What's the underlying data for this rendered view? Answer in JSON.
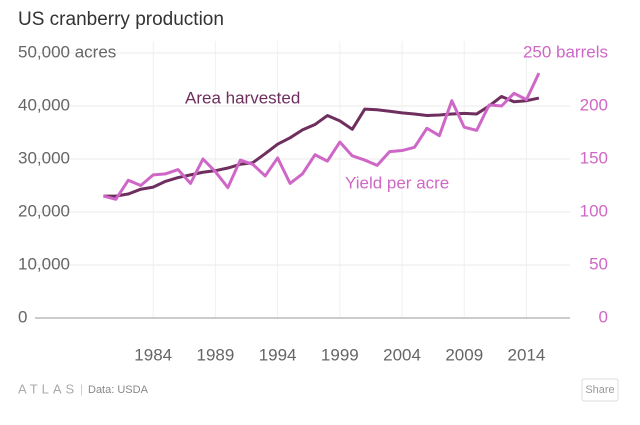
{
  "chart_data": {
    "type": "line",
    "title": "US cranberry production",
    "x": [
      1980,
      1981,
      1982,
      1983,
      1984,
      1985,
      1986,
      1987,
      1988,
      1989,
      1990,
      1991,
      1992,
      1993,
      1994,
      1995,
      1996,
      1997,
      1998,
      1999,
      2000,
      2001,
      2002,
      2003,
      2004,
      2005,
      2006,
      2007,
      2008,
      2009,
      2010,
      2011,
      2012,
      2013,
      2014,
      2015
    ],
    "xlim": [
      1974.5,
      2017.5
    ],
    "xticks": [
      1984,
      1989,
      1994,
      1999,
      2004,
      2009,
      2014
    ],
    "ylim": [
      0,
      50000
    ],
    "yticks": [
      0,
      {
        "value": 10000,
        "label": "10,000"
      },
      {
        "value": 20000,
        "label": "20,000"
      },
      {
        "value": 30000,
        "label": "30,000"
      },
      {
        "value": 40000,
        "label": "40,000"
      },
      {
        "value": 50000,
        "label": "50,000 acres"
      }
    ],
    "y2lim": [
      0,
      250
    ],
    "y2ticks": [
      0,
      50,
      100,
      150,
      200,
      {
        "value": 250,
        "label": "250 barrels"
      }
    ],
    "grid": true,
    "series": [
      {
        "name": "Area harvested",
        "color": "#6e2f5e",
        "axis": "y",
        "values": [
          23000,
          23000,
          23400,
          24300,
          24700,
          25800,
          26500,
          27000,
          27500,
          27800,
          28300,
          29000,
          29300,
          31000,
          32800,
          34000,
          35500,
          36500,
          38200,
          37200,
          35600,
          39400,
          39300,
          39000,
          38700,
          38500,
          38200,
          38300,
          38500,
          38600,
          38500,
          40000,
          41800,
          40800,
          41000,
          41500
        ]
      },
      {
        "name": "Yield per acre",
        "color": "#cf67c6",
        "axis": "y2",
        "values": [
          115,
          112,
          130,
          125,
          135,
          136,
          140,
          127,
          150,
          138,
          123,
          149,
          145,
          134,
          151,
          127,
          136,
          154,
          148,
          166,
          153,
          149,
          144,
          157,
          158,
          161,
          179,
          172,
          205,
          180,
          177,
          201,
          200,
          212,
          206,
          231
        ]
      }
    ]
  },
  "footer": {
    "brand": "ATLAS",
    "source": "Data: USDA",
    "share": "Share"
  }
}
